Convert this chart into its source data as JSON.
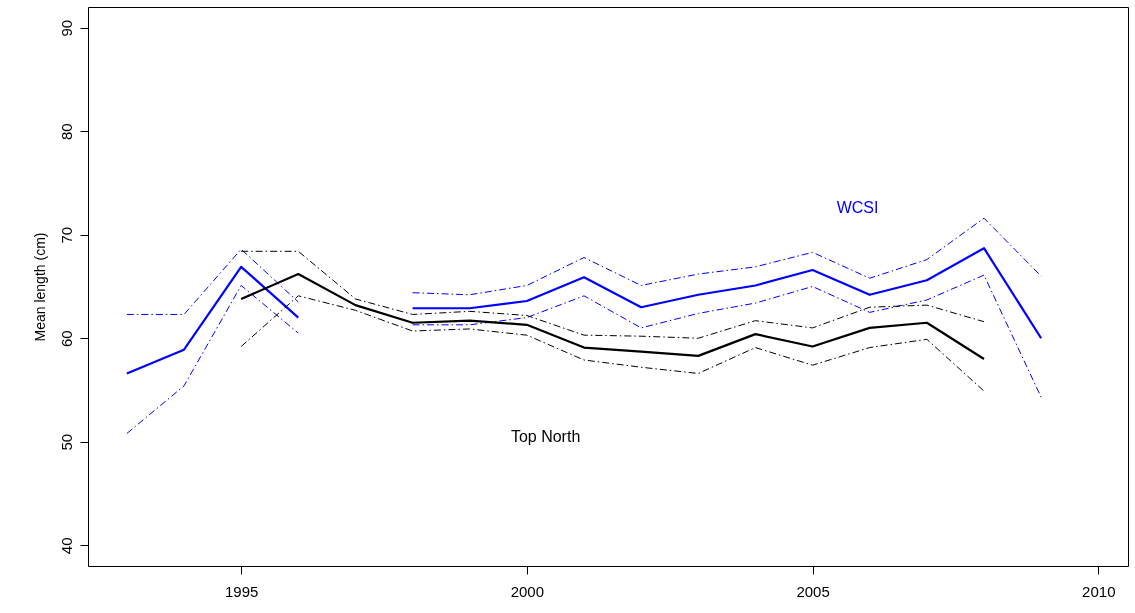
{
  "chart_data": {
    "type": "line",
    "ylabel": "Mean length (cm)",
    "xlim": [
      1992.32,
      2010.52
    ],
    "ylim": [
      38,
      92
    ],
    "xticks": [
      1995,
      2000,
      2005,
      2010
    ],
    "yticks": [
      40,
      50,
      60,
      70,
      80,
      90
    ],
    "marker": "none",
    "series": [
      {
        "name": "WCSI",
        "color": "#0000ff",
        "line_style": "solid",
        "x": [
          1993,
          1994,
          1995,
          1996,
          1997,
          1998,
          1999,
          2000,
          2001,
          2002,
          2003,
          2004,
          2005,
          2006,
          2007,
          2008,
          2009
        ],
        "values": [
          56.6,
          58.9,
          66.9,
          62.0,
          null,
          62.9,
          62.9,
          63.6,
          65.9,
          63.0,
          64.2,
          65.1,
          66.6,
          64.2,
          65.6,
          68.7,
          60.0
        ]
      },
      {
        "color": "#0000ff",
        "line_style": "dashed",
        "x": [
          1993,
          1994,
          1995,
          1996,
          1997,
          1998,
          1999,
          2000,
          2001,
          2002,
          2003,
          2004,
          2005,
          2006,
          2007,
          2008,
          2009
        ],
        "values": [
          62.3,
          62.3,
          68.6,
          63.5,
          null,
          64.4,
          64.2,
          65.1,
          67.8,
          65.1,
          66.2,
          66.9,
          68.3,
          65.8,
          67.6,
          71.6,
          66.0
        ]
      },
      {
        "color": "#0000ff",
        "line_style": "dashed",
        "x": [
          1993,
          1994,
          1995,
          1996,
          1997,
          1998,
          1999,
          2000,
          2001,
          2002,
          2003,
          2004,
          2005,
          2006,
          2007,
          2008,
          2009
        ],
        "values": [
          50.8,
          55.4,
          65.1,
          60.5,
          null,
          61.3,
          61.3,
          62.0,
          64.1,
          61.0,
          62.4,
          63.4,
          65.0,
          62.5,
          63.7,
          66.1,
          54.3
        ]
      },
      {
        "name": "Top North",
        "color": "#000000",
        "line_style": "solid",
        "x": [
          1995,
          1996,
          1997,
          1998,
          1999,
          2000,
          2001,
          2002,
          2003,
          2004,
          2005,
          2006,
          2007,
          2008
        ],
        "values": [
          63.8,
          66.2,
          63.2,
          61.5,
          61.7,
          61.3,
          59.1,
          58.7,
          58.3,
          60.4,
          59.2,
          61.0,
          61.5,
          58.0
        ]
      },
      {
        "color": "#000000",
        "line_style": "dashed",
        "x": [
          1995,
          1996,
          1997,
          1998,
          1999,
          2000,
          2001,
          2002,
          2003,
          2004,
          2005,
          2006,
          2007,
          2008
        ],
        "values": [
          68.4,
          68.4,
          63.8,
          62.3,
          62.6,
          62.2,
          60.3,
          60.2,
          60.0,
          61.7,
          61.0,
          63.0,
          63.2,
          61.6
        ]
      },
      {
        "color": "#000000",
        "line_style": "dashed",
        "x": [
          1995,
          1996,
          1997,
          1998,
          1999,
          2000,
          2001,
          2002,
          2003,
          2004,
          2005,
          2006,
          2007,
          2008
        ],
        "values": [
          59.2,
          64.1,
          62.7,
          60.7,
          60.9,
          60.3,
          57.9,
          57.2,
          56.6,
          59.1,
          57.4,
          59.1,
          59.9,
          54.9
        ]
      }
    ]
  }
}
